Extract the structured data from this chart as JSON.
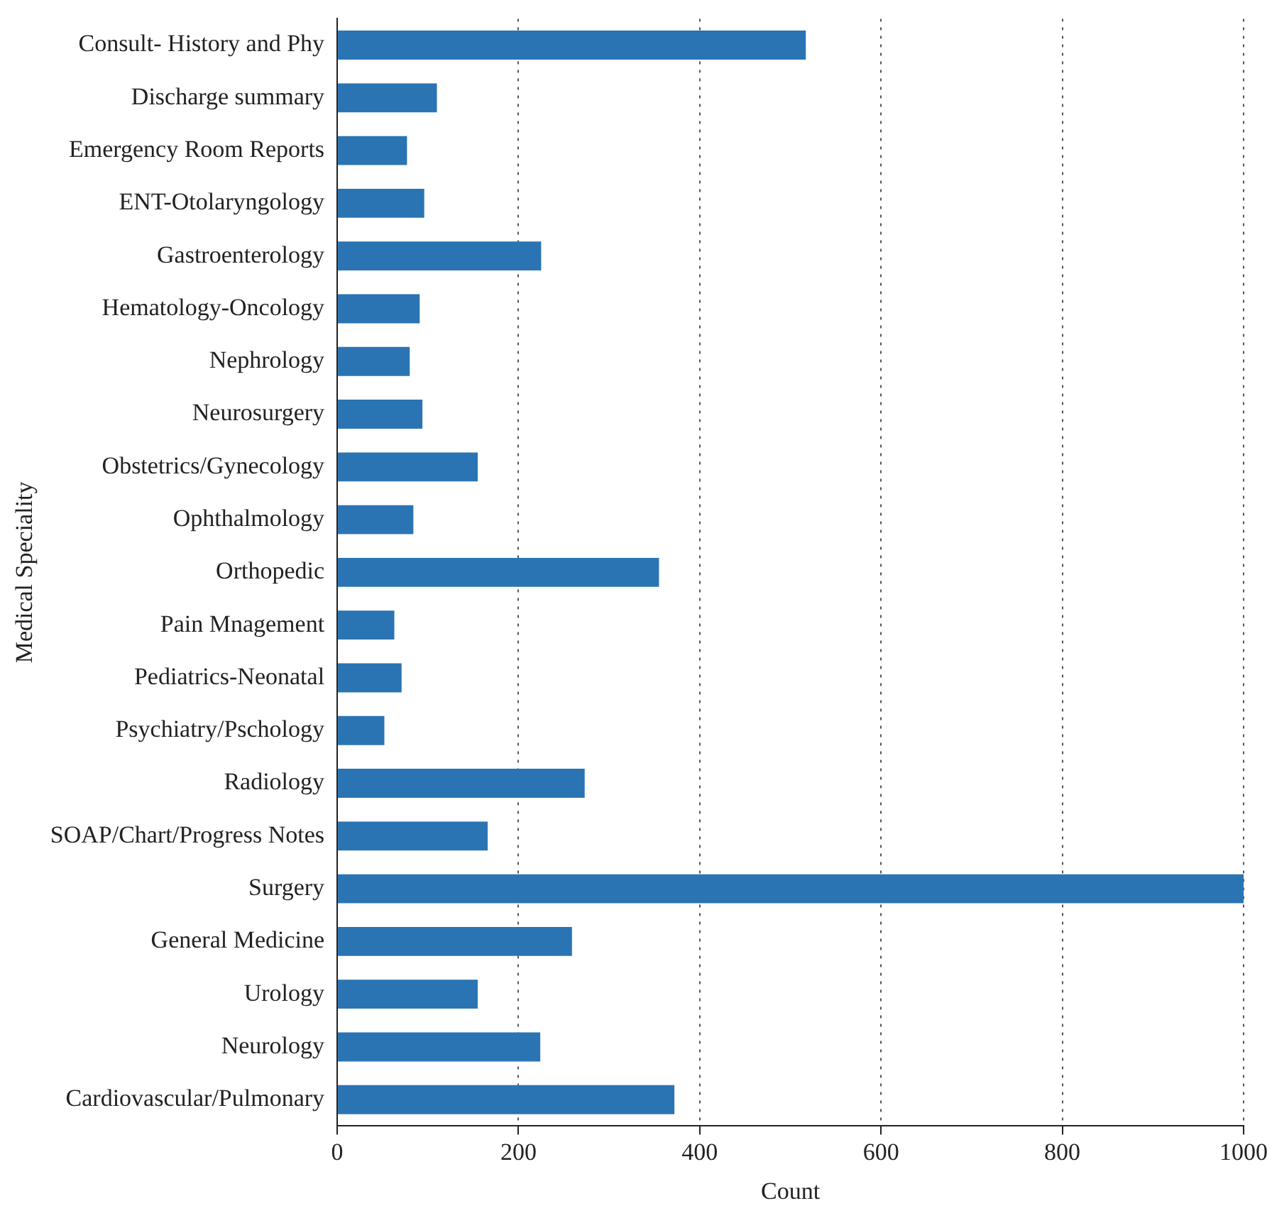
{
  "chart_data": {
    "type": "bar",
    "orientation": "horizontal",
    "xlabel": "Count",
    "ylabel": "Medical Speciality",
    "categories": [
      "Consult- History and Phy",
      "Discharge summary",
      "Emergency Room Reports",
      "ENT-Otolaryngology",
      "Gastroenterology",
      "Hematology-Oncology",
      "Nephrology",
      "Neurosurgery",
      "Obstetrics/Gynecology",
      "Ophthalmology",
      "Orthopedic",
      "Pain Mnagement",
      "Pediatrics-Neonatal",
      "Psychiatry/Pschology",
      "Radiology",
      "SOAP/Chart/Progress Notes",
      "Surgery",
      "General Medicine",
      "Urology",
      "Neurology",
      "Cardiovascular/Pulmonary"
    ],
    "values": [
      517,
      110,
      77,
      96,
      225,
      91,
      80,
      94,
      155,
      84,
      355,
      63,
      71,
      52,
      273,
      166,
      1000,
      259,
      155,
      224,
      372
    ],
    "color": "#2a74b4",
    "xlim": [
      0,
      1000
    ],
    "xticks": [
      0,
      200,
      400,
      600,
      800,
      1000
    ],
    "grid": "x",
    "line_style": "dotted",
    "legend": false
  }
}
